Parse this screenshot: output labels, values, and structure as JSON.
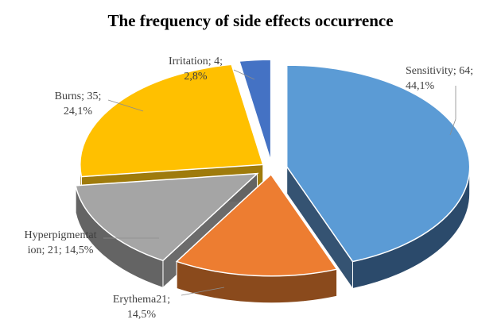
{
  "chart_data": {
    "type": "pie",
    "title": "The frequency of side effects occurrence",
    "slices": [
      {
        "name": "Sensitivity",
        "value": 64,
        "percent": "44,1%",
        "label": [
          "Sensitivity; 64;",
          "44,1%"
        ],
        "color": "#5b9bd5",
        "dark": "#2b4a6b"
      },
      {
        "name": "Erythema",
        "value": 21,
        "percent": "14,5%",
        "label": [
          "Erythema21;",
          "14,5%"
        ],
        "color": "#ed7d31",
        "dark": "#8a4a1c"
      },
      {
        "name": "Hyperpigmentation",
        "value": 21,
        "percent": "14,5%",
        "label": [
          "Hyperpigmentat",
          "ion; 21; 14,5%"
        ],
        "color": "#a5a5a5",
        "dark": "#646464"
      },
      {
        "name": "Burns",
        "value": 35,
        "percent": "24,1%",
        "label": [
          "Burns; 35;",
          "24,1%"
        ],
        "color": "#ffc000",
        "dark": "#9a7400"
      },
      {
        "name": "Irritation",
        "value": 4,
        "percent": "2,8%",
        "label": [
          "Irritation; 4;",
          "2,8%"
        ],
        "color": "#4472c4",
        "dark": "#27457a"
      }
    ]
  }
}
